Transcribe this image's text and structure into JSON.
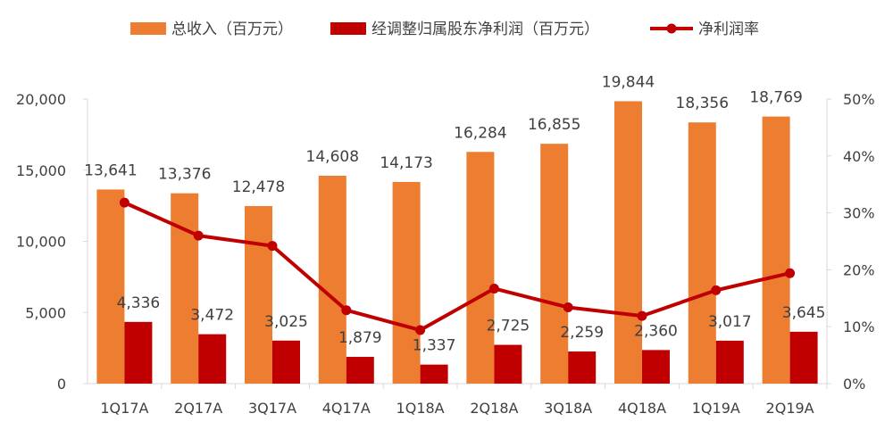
{
  "chart_data": {
    "type": "bar",
    "categories": [
      "1Q17A",
      "2Q17A",
      "3Q17A",
      "4Q17A",
      "1Q18A",
      "2Q18A",
      "3Q18A",
      "4Q18A",
      "1Q19A",
      "2Q19A"
    ],
    "series": [
      {
        "name": "总收入（百万元）",
        "type": "bar",
        "axis": "left",
        "color": "#ED7D31",
        "values": [
          13641,
          13376,
          12478,
          14608,
          14173,
          16284,
          16855,
          19844,
          18356,
          18769
        ]
      },
      {
        "name": "经调整归属股东净利润（百万元）",
        "type": "bar",
        "axis": "left",
        "color": "#C00000",
        "values": [
          4336,
          3472,
          3025,
          1879,
          1337,
          2725,
          2259,
          2360,
          3017,
          3645
        ]
      },
      {
        "name": "净利润率",
        "type": "line",
        "axis": "right",
        "color": "#C00000",
        "values": [
          31.8,
          26.0,
          24.2,
          12.9,
          9.4,
          16.7,
          13.4,
          11.9,
          16.4,
          19.4
        ]
      }
    ],
    "labels": {
      "revenue": [
        "13,641",
        "13,376",
        "12,478",
        "14,608",
        "14,173",
        "16,284",
        "16,855",
        "19,844",
        "18,356",
        "18,769"
      ],
      "profit": [
        "4,336",
        "3,472",
        "3,025",
        "1,879",
        "1,337",
        "2,725",
        "2,259",
        "2,360",
        "3,017",
        "3,645"
      ]
    },
    "y_left": {
      "min": 0,
      "max": 20000,
      "ticks": [
        "0",
        "5,000",
        "10,000",
        "15,000",
        "20,000"
      ]
    },
    "y_right": {
      "min": 0,
      "max": 50,
      "ticks": [
        "0%",
        "10%",
        "20%",
        "30%",
        "40%",
        "50%"
      ]
    },
    "legend_position": "top",
    "grid": false
  }
}
